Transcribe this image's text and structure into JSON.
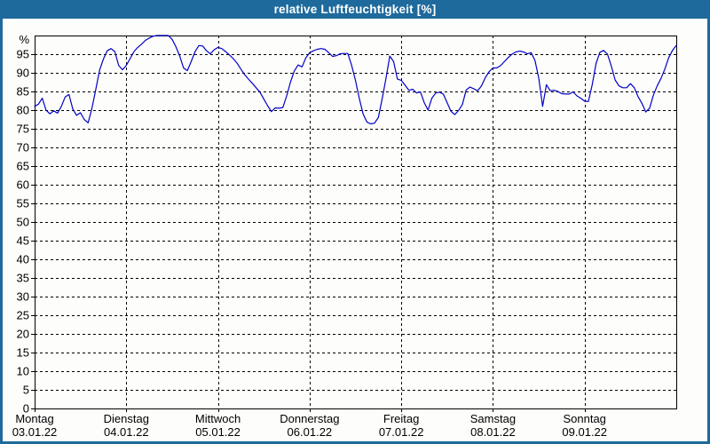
{
  "window": {
    "title": "relative Luftfeuchtigkeit [%]"
  },
  "colors": {
    "frame": "#1e6a9c",
    "title_text": "#ffffff",
    "page_bg": "#fdfdfb",
    "plot_bg": "#fdfdfb",
    "grid": "#000000",
    "axis_text": "#000000",
    "line": "#0000c8"
  },
  "chart_data": {
    "type": "line",
    "title": "relative Luftfeuchtigkeit [%]",
    "ylabel": "%",
    "xlabel": "",
    "ylim": [
      0,
      100
    ],
    "xlim_hours": [
      0,
      168
    ],
    "grid": true,
    "legend": "none",
    "y_unit_label": "%",
    "y_ticks": [
      95,
      90,
      85,
      80,
      75,
      70,
      65,
      60,
      55,
      50,
      45,
      40,
      35,
      30,
      25,
      20,
      15,
      10,
      5,
      0
    ],
    "x_ticks": [
      {
        "hour": 0,
        "day": "Montag",
        "date": "03.01.22"
      },
      {
        "hour": 24,
        "day": "Dienstag",
        "date": "04.01.22"
      },
      {
        "hour": 48,
        "day": "Mittwoch",
        "date": "05.01.22"
      },
      {
        "hour": 72,
        "day": "Donnerstag",
        "date": "06.01.22"
      },
      {
        "hour": 96,
        "day": "Freitag",
        "date": "07.01.22"
      },
      {
        "hour": 120,
        "day": "Samstag",
        "date": "08.01.22"
      },
      {
        "hour": 144,
        "day": "Sonntag",
        "date": "09.01.22"
      }
    ],
    "series": [
      {
        "name": "relative Luftfeuchtigkeit [%]",
        "start_hour": 0,
        "step_hours": 1,
        "values": [
          81.0,
          81.6,
          83.2,
          80.0,
          79.0,
          79.8,
          79.2,
          81.0,
          83.5,
          84.2,
          80.3,
          78.6,
          79.3,
          77.5,
          76.6,
          80.5,
          85.5,
          90.7,
          93.7,
          95.9,
          96.5,
          95.7,
          92.0,
          90.8,
          92.0,
          93.8,
          95.7,
          96.8,
          97.7,
          98.7,
          99.3,
          99.8,
          100,
          100,
          100,
          100,
          99.0,
          97.0,
          94.5,
          91.3,
          90.6,
          93.0,
          95.7,
          97.3,
          97.2,
          95.9,
          95.1,
          96.2,
          96.8,
          96.5,
          95.7,
          94.8,
          93.8,
          92.6,
          91.0,
          89.5,
          88.3,
          87.2,
          86.0,
          84.8,
          83.0,
          81.2,
          79.6,
          80.6,
          80.5,
          80.7,
          83.8,
          87.5,
          90.5,
          92.1,
          91.6,
          94.0,
          95.4,
          95.9,
          96.3,
          96.5,
          96.3,
          95.4,
          94.4,
          94.6,
          95.1,
          95.2,
          95.2,
          92.0,
          88.0,
          83.2,
          79.0,
          76.8,
          76.3,
          76.5,
          78.0,
          83.0,
          88.5,
          94.5,
          93.0,
          88.3,
          88.0,
          86.7,
          85.3,
          85.6,
          84.6,
          84.9,
          82.0,
          80.0,
          83.2,
          84.6,
          84.8,
          84.3,
          82.0,
          79.7,
          78.8,
          79.9,
          81.5,
          85.4,
          86.2,
          85.7,
          85.2,
          86.5,
          88.7,
          90.3,
          91.3,
          91.3,
          91.9,
          93.0,
          94.1,
          95.0,
          95.6,
          95.8,
          95.6,
          95.1,
          95.4,
          93.3,
          88.5,
          81.0,
          86.8,
          85.2,
          85.3,
          85.0,
          84.4,
          84.3,
          84.3,
          84.9,
          83.8,
          83.2,
          82.4,
          82.3,
          86.8,
          92.5,
          95.5,
          96.0,
          95.0,
          91.8,
          88.1,
          86.5,
          86.0,
          86.0,
          87.1,
          86.0,
          83.6,
          81.8,
          79.5,
          80.5,
          84.0,
          86.5,
          88.5,
          91.0,
          94.0,
          96.0,
          97.3
        ]
      }
    ]
  }
}
